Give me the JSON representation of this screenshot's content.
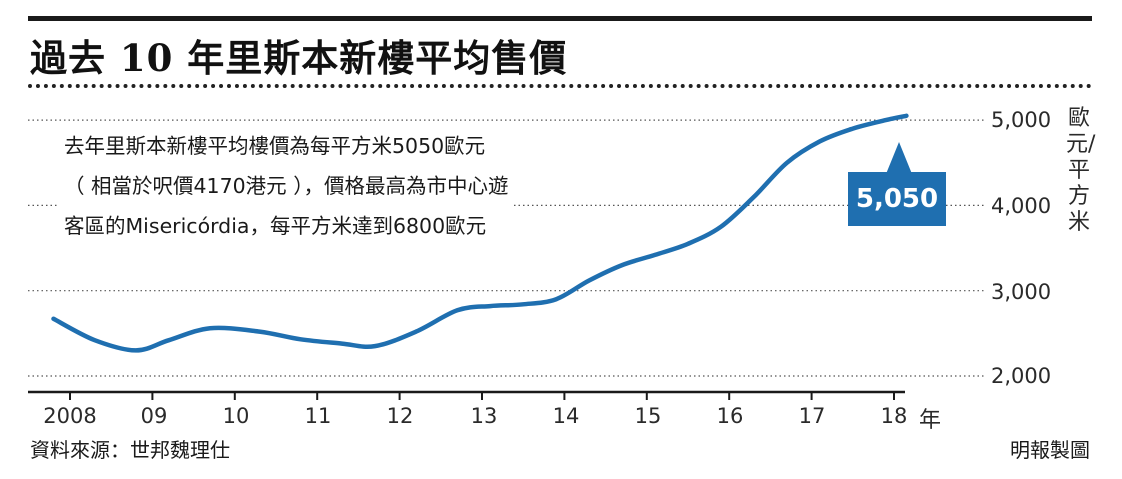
{
  "header": {
    "title": "過去 10 年里斯本新樓平均售價"
  },
  "note": {
    "lines": [
      "去年里斯本新樓平均樓價為每平方米5050歐元",
      "（ 相當於呎價4170港元 ），價格最高為市中心遊",
      "客區的Misericórdia，每平方米達到6800歐元"
    ]
  },
  "footer": {
    "source": "資料來源：世邦魏理仕",
    "credit": "明報製圖"
  },
  "colors": {
    "line": "#1f6fb0",
    "callout": "#1f6fb0",
    "text": "#1a1a1a"
  },
  "chart_data": {
    "type": "line",
    "title": "過去 10 年里斯本新樓平均售價",
    "xlabel": "年",
    "ylabel": "歐元/平方米",
    "x_tick_labels": [
      "2008",
      "09",
      "10",
      "11",
      "12",
      "13",
      "14",
      "15",
      "16",
      "17",
      "18"
    ],
    "y_tick_labels": [
      "2,000",
      "3,000",
      "4,000",
      "5,000"
    ],
    "y_ticks": [
      2000,
      3000,
      4000,
      5000
    ],
    "ylim": [
      2000,
      5000
    ],
    "grid": "horizontal dotted",
    "series": [
      {
        "x": [
          2007.8,
          2008.3,
          2008.8,
          2009.2,
          2009.7,
          2010.3,
          2010.8,
          2011.3,
          2011.7,
          2012.2,
          2012.7,
          2013.1,
          2013.5,
          2013.9,
          2014.3,
          2014.7,
          2015.1,
          2015.5,
          2015.9,
          2016.3,
          2016.7,
          2017.1,
          2017.5,
          2017.9,
          2018.15
        ],
        "values": [
          2670,
          2420,
          2300,
          2420,
          2560,
          2520,
          2430,
          2380,
          2350,
          2520,
          2770,
          2820,
          2840,
          2900,
          3120,
          3300,
          3420,
          3550,
          3750,
          4100,
          4500,
          4750,
          4900,
          5000,
          5050
        ]
      }
    ],
    "callout": {
      "label": "5,050",
      "x": 2018.15,
      "value": 5050
    }
  }
}
